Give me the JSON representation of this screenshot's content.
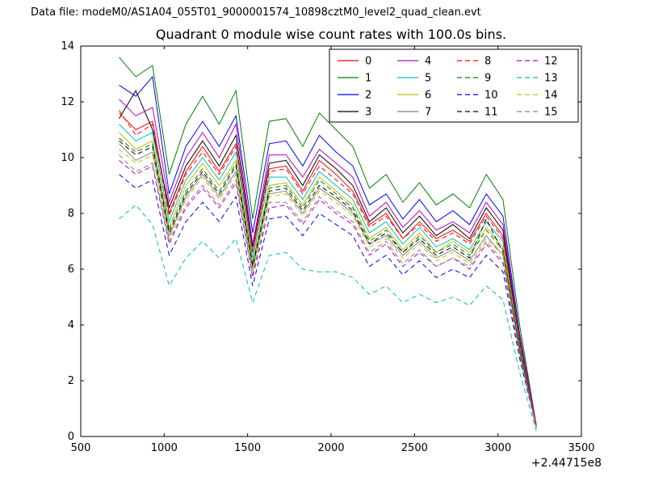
{
  "header": {
    "datafile": "Data file: modeM0/AS1A04_055T01_9000001574_10898cztM0_level2_quad_clean.evt"
  },
  "chart_data": {
    "type": "line",
    "title": "Quadrant 0 module wise count rates with 100.0s bins.",
    "xlabel": "",
    "ylabel": "",
    "x_offset_label": "+2.44715e8",
    "xlim": [
      500,
      3500
    ],
    "ylim": [
      0,
      14
    ],
    "x_ticks": [
      "500",
      "1000",
      "1500",
      "2000",
      "2500",
      "3000",
      "3500"
    ],
    "y_ticks": [
      "0",
      "2",
      "4",
      "6",
      "8",
      "10",
      "12",
      "14"
    ],
    "grid": false,
    "legend_position": "upper center",
    "legend_columns": 4,
    "x": [
      730,
      830,
      930,
      1030,
      1130,
      1230,
      1330,
      1430,
      1530,
      1630,
      1730,
      1830,
      1930,
      2030,
      2130,
      2230,
      2330,
      2430,
      2530,
      2630,
      2730,
      2830,
      2930,
      3030,
      3130,
      3230
    ],
    "series": [
      {
        "name": "0",
        "color": "#ff0000",
        "dash": false,
        "values": [
          11.6,
          11.0,
          11.3,
          8.0,
          9.5,
          10.4,
          9.5,
          10.5,
          6.6,
          9.6,
          9.7,
          8.8,
          9.9,
          9.4,
          8.8,
          7.6,
          8.0,
          7.1,
          7.7,
          7.1,
          7.4,
          7.0,
          8.0,
          7.2,
          3.4,
          0.3
        ]
      },
      {
        "name": "1",
        "color": "#008000",
        "dash": false,
        "values": [
          13.6,
          12.9,
          13.3,
          9.4,
          11.2,
          12.2,
          11.2,
          12.4,
          7.8,
          11.3,
          11.4,
          10.4,
          11.6,
          11.0,
          10.4,
          8.9,
          9.4,
          8.4,
          9.1,
          8.3,
          8.7,
          8.2,
          9.4,
          8.5,
          4.0,
          0.4
        ]
      },
      {
        "name": "2",
        "color": "#0000ff",
        "dash": false,
        "values": [
          12.6,
          12.2,
          12.9,
          8.7,
          10.4,
          11.3,
          10.4,
          11.5,
          7.3,
          10.5,
          10.6,
          9.7,
          10.8,
          10.2,
          9.7,
          8.3,
          8.7,
          7.8,
          8.5,
          7.7,
          8.1,
          7.6,
          8.7,
          7.9,
          3.7,
          0.4
        ]
      },
      {
        "name": "3",
        "color": "#000000",
        "dash": false,
        "values": [
          11.4,
          12.4,
          11.0,
          8.2,
          9.7,
          10.6,
          9.7,
          10.8,
          6.8,
          9.8,
          9.9,
          9.0,
          10.1,
          9.6,
          9.0,
          7.7,
          8.2,
          7.3,
          7.9,
          7.2,
          7.6,
          7.1,
          8.2,
          7.4,
          3.5,
          0.3
        ]
      },
      {
        "name": "4",
        "color": "#bf00bf",
        "dash": false,
        "values": [
          12.1,
          11.5,
          11.8,
          8.4,
          10.0,
          10.9,
          10.0,
          11.2,
          6.9,
          10.1,
          10.1,
          9.3,
          10.3,
          9.8,
          9.3,
          7.9,
          8.4,
          7.5,
          8.1,
          7.4,
          7.7,
          7.3,
          8.4,
          7.6,
          3.6,
          0.4
        ]
      },
      {
        "name": "5",
        "color": "#00bfbf",
        "dash": false,
        "values": [
          11.2,
          10.6,
          10.9,
          7.7,
          9.2,
          10.0,
          9.2,
          10.2,
          6.4,
          9.3,
          9.3,
          8.5,
          9.5,
          9.0,
          8.5,
          7.3,
          7.7,
          6.9,
          7.5,
          6.8,
          7.1,
          6.7,
          7.7,
          7.0,
          3.3,
          0.3
        ]
      },
      {
        "name": "6",
        "color": "#bfbf00",
        "dash": false,
        "values": [
          10.9,
          10.3,
          10.6,
          7.5,
          9.0,
          9.8,
          9.0,
          9.9,
          6.2,
          9.0,
          9.1,
          8.3,
          9.3,
          8.8,
          8.3,
          7.1,
          7.5,
          6.7,
          7.3,
          6.6,
          7.0,
          6.6,
          7.5,
          6.8,
          3.2,
          0.3
        ]
      },
      {
        "name": "7",
        "color": "#808080",
        "dash": false,
        "values": [
          10.5,
          9.9,
          10.2,
          7.2,
          8.6,
          9.4,
          8.6,
          9.5,
          6.0,
          8.7,
          8.8,
          8.0,
          8.9,
          8.5,
          8.0,
          6.9,
          7.2,
          6.5,
          7.0,
          6.4,
          6.7,
          6.3,
          7.2,
          6.5,
          3.1,
          0.3
        ]
      },
      {
        "name": "8",
        "color": "#ff0000",
        "dash": true,
        "values": [
          11.7,
          10.8,
          11.2,
          7.9,
          9.4,
          10.2,
          9.4,
          10.4,
          6.6,
          9.5,
          9.6,
          8.7,
          9.7,
          9.2,
          8.7,
          7.5,
          7.9,
          7.1,
          7.6,
          7.0,
          7.3,
          6.9,
          7.9,
          7.1,
          3.4,
          0.3
        ]
      },
      {
        "name": "9",
        "color": "#008000",
        "dash": true,
        "values": [
          10.7,
          10.2,
          10.5,
          7.4,
          8.8,
          9.6,
          8.8,
          9.8,
          6.2,
          8.9,
          9.0,
          8.2,
          9.2,
          8.7,
          8.2,
          7.0,
          7.4,
          6.6,
          7.2,
          6.6,
          6.9,
          6.5,
          7.4,
          6.7,
          3.2,
          0.3
        ]
      },
      {
        "name": "10",
        "color": "#0000ff",
        "dash": true,
        "values": [
          9.4,
          8.9,
          9.2,
          6.5,
          7.7,
          8.4,
          7.7,
          8.6,
          5.4,
          7.8,
          7.9,
          7.2,
          8.0,
          7.6,
          7.2,
          6.1,
          6.5,
          5.8,
          6.3,
          5.7,
          6.0,
          5.7,
          6.5,
          5.9,
          2.8,
          0.3
        ]
      },
      {
        "name": "11",
        "color": "#000000",
        "dash": true,
        "values": [
          10.6,
          10.1,
          10.4,
          7.3,
          8.7,
          9.5,
          8.7,
          9.7,
          6.1,
          8.8,
          8.9,
          8.1,
          9.0,
          8.6,
          8.1,
          6.9,
          7.3,
          6.6,
          7.1,
          6.5,
          6.8,
          6.4,
          7.8,
          6.6,
          3.1,
          0.3
        ]
      },
      {
        "name": "12",
        "color": "#bf00bf",
        "dash": true,
        "values": [
          9.9,
          9.4,
          9.7,
          6.9,
          8.2,
          8.9,
          8.2,
          9.1,
          5.7,
          8.2,
          8.3,
          7.6,
          8.5,
          8.0,
          7.6,
          6.5,
          6.9,
          6.1,
          6.6,
          6.1,
          6.4,
          6.0,
          6.9,
          6.2,
          2.9,
          0.3
        ]
      },
      {
        "name": "13",
        "color": "#00bfbf",
        "dash": true,
        "values": [
          7.8,
          8.3,
          7.6,
          5.4,
          6.4,
          7.0,
          6.4,
          7.1,
          4.8,
          6.5,
          6.6,
          6.0,
          5.9,
          5.9,
          5.7,
          5.1,
          5.4,
          4.8,
          5.1,
          4.8,
          5.0,
          4.7,
          5.4,
          4.9,
          2.3,
          0.2
        ]
      },
      {
        "name": "14",
        "color": "#bfbf00",
        "dash": true,
        "values": [
          10.3,
          9.8,
          10.1,
          7.1,
          8.5,
          9.3,
          8.5,
          9.4,
          5.9,
          8.6,
          8.7,
          7.9,
          8.8,
          8.4,
          7.9,
          6.8,
          7.1,
          6.4,
          6.9,
          6.3,
          6.6,
          6.2,
          7.1,
          6.5,
          3.0,
          0.3
        ]
      },
      {
        "name": "15",
        "color": "#808080",
        "dash": true,
        "values": [
          10.1,
          9.5,
          9.8,
          7.0,
          8.3,
          9.0,
          8.3,
          9.2,
          5.8,
          8.4,
          8.4,
          7.7,
          8.6,
          8.1,
          7.7,
          6.6,
          7.0,
          6.2,
          6.7,
          6.1,
          6.4,
          6.1,
          7.0,
          6.3,
          3.0,
          0.3
        ]
      }
    ]
  }
}
